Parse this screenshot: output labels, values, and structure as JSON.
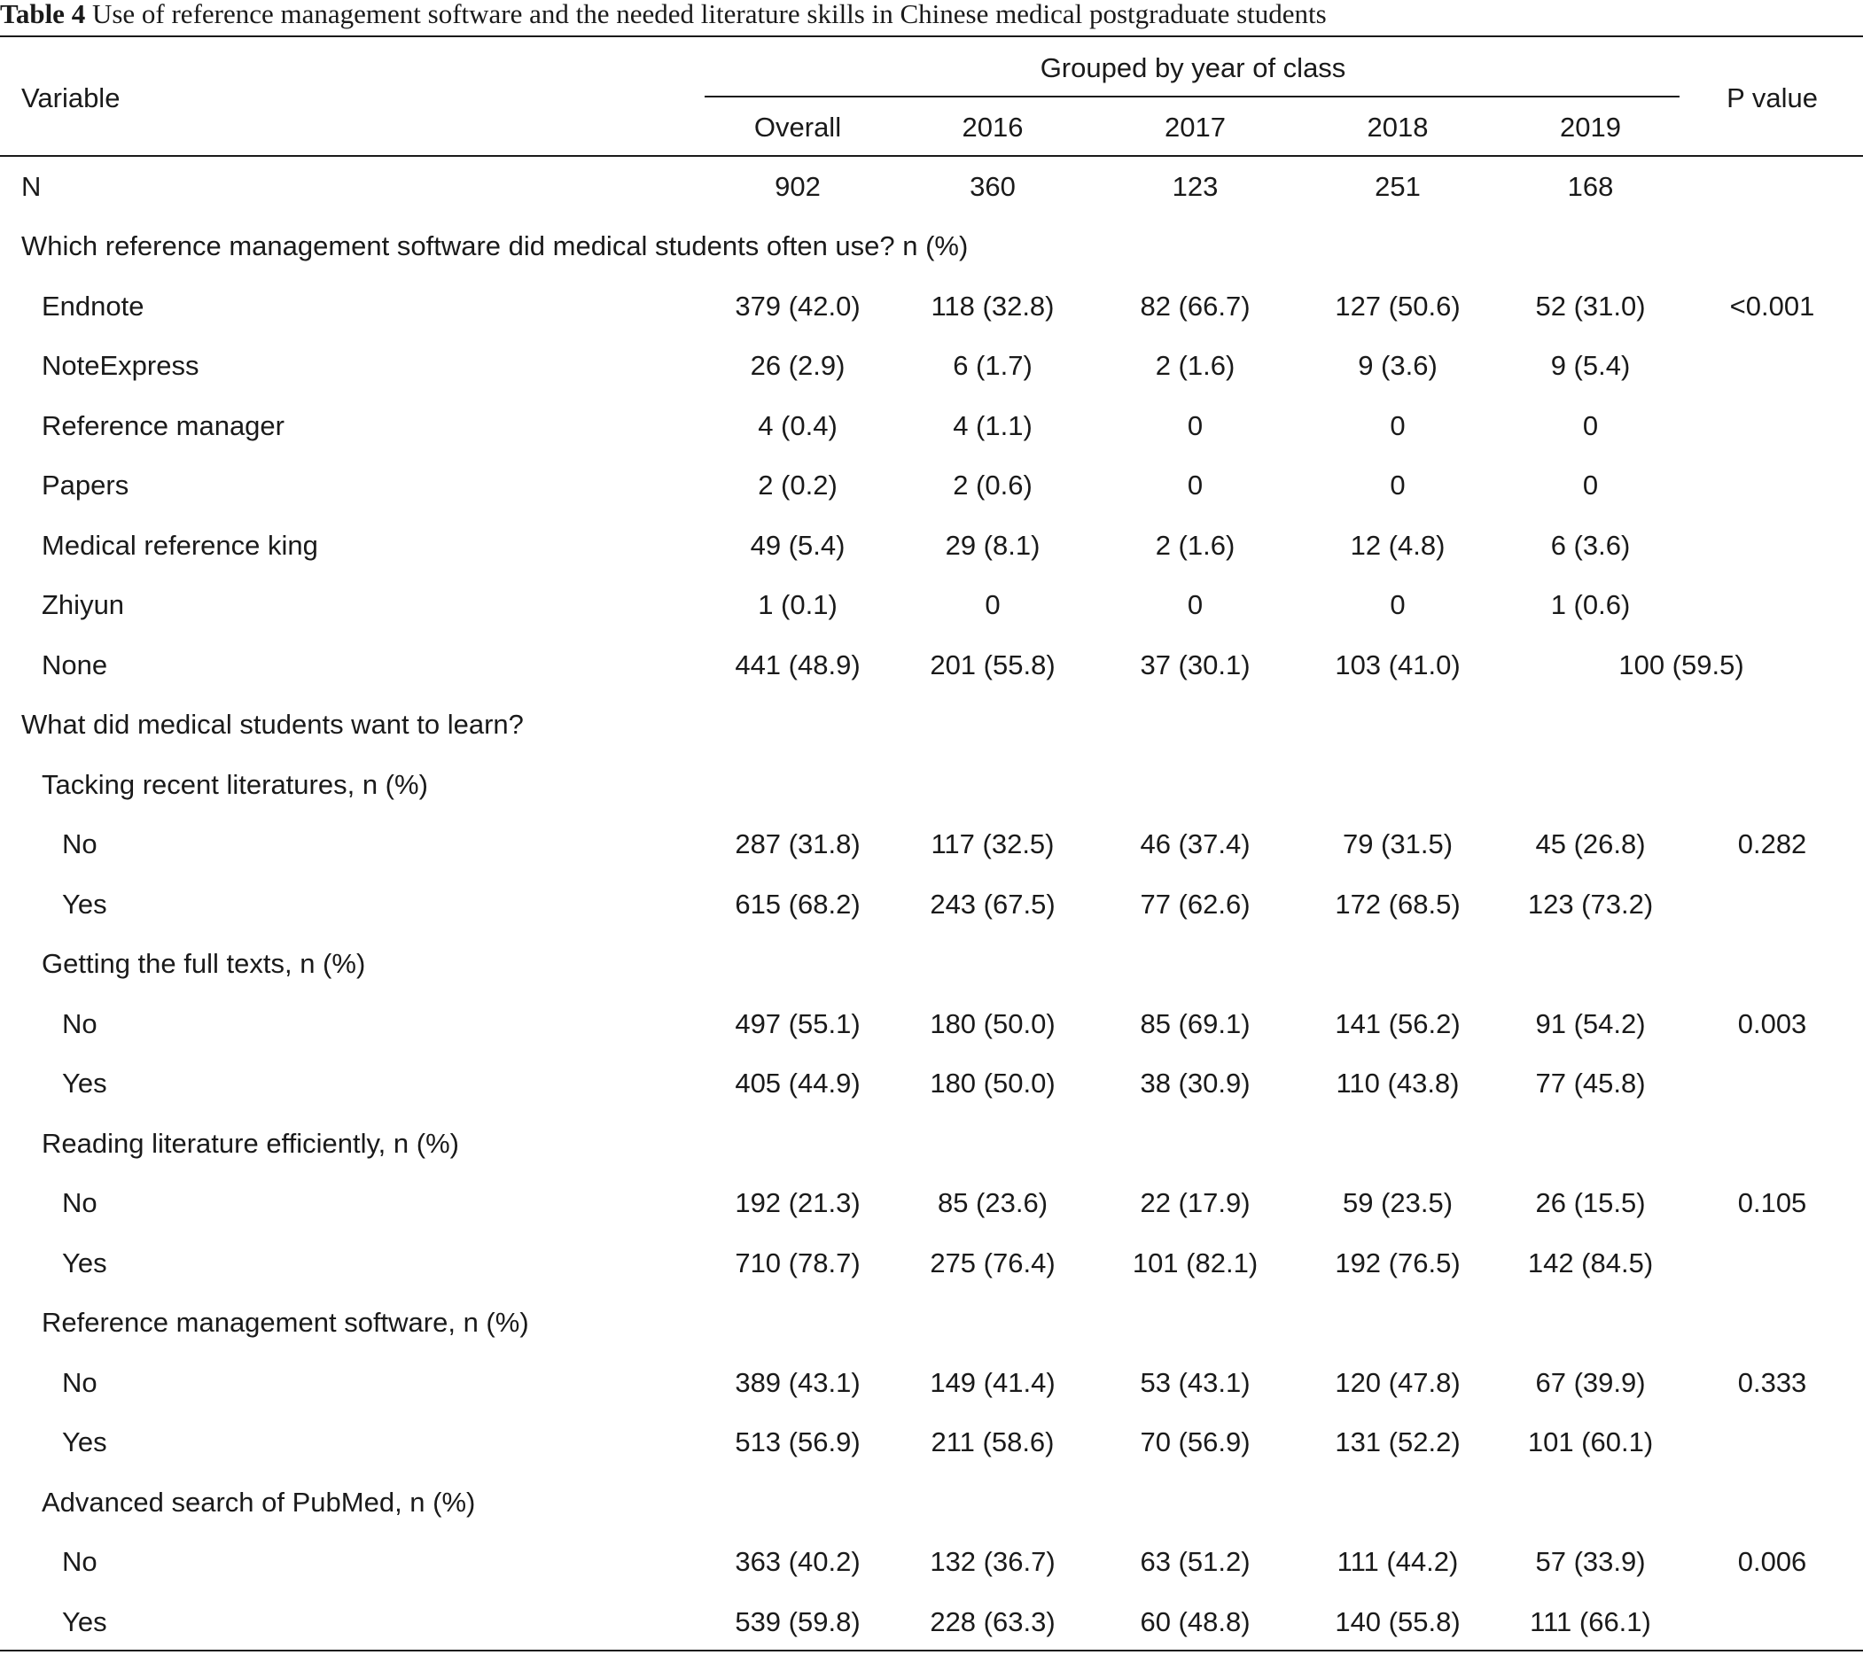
{
  "caption": {
    "label": "Table 4",
    "text": " Use of reference management software and the needed literature skills in Chinese medical postgraduate students"
  },
  "header": {
    "variable": "Variable",
    "group": "Grouped by year of class",
    "p_value": "P value",
    "columns": [
      "Overall",
      "2016",
      "2017",
      "2018",
      "2019"
    ]
  },
  "rows": [
    {
      "label": "N",
      "cells": [
        "902",
        "360",
        "123",
        "251",
        "168"
      ],
      "p": ""
    },
    {
      "label": "Which reference management software did medical students often use? n (%)"
    },
    {
      "label": "Endnote",
      "cells": [
        "379 (42.0)",
        "118 (32.8)",
        "82 (66.7)",
        "127 (50.6)",
        "52 (31.0)"
      ],
      "p": "<0.001"
    },
    {
      "label": "NoteExpress",
      "cells": [
        "26 (2.9)",
        "6 (1.7)",
        "2 (1.6)",
        "9 (3.6)",
        "9 (5.4)"
      ],
      "p": ""
    },
    {
      "label": "Reference manager",
      "cells": [
        "4 (0.4)",
        "4 (1.1)",
        "0",
        "0",
        "0"
      ],
      "p": ""
    },
    {
      "label": "Papers",
      "cells": [
        "2 (0.2)",
        "2 (0.6)",
        "0",
        "0",
        "0"
      ],
      "p": ""
    },
    {
      "label": "Medical reference king",
      "cells": [
        "49 (5.4)",
        "29 (8.1)",
        "2 (1.6)",
        "12 (4.8)",
        "6 (3.6)"
      ],
      "p": ""
    },
    {
      "label": "Zhiyun",
      "cells": [
        "1 (0.1)",
        "0",
        "0",
        "0",
        "1 (0.6)"
      ],
      "p": ""
    },
    {
      "label": "None",
      "cells": [
        "441 (48.9)",
        "201 (55.8)",
        "37 (30.1)",
        "103 (41.0)"
      ],
      "merged": "100 (59.5)"
    },
    {
      "label": "What did medical students want to learn?"
    },
    {
      "label": "Tacking recent literatures, n (%)"
    },
    {
      "label": "No",
      "cells": [
        "287 (31.8)",
        "117 (32.5)",
        "46 (37.4)",
        "79 (31.5)",
        "45 (26.8)"
      ],
      "p": "0.282"
    },
    {
      "label": "Yes",
      "cells": [
        "615 (68.2)",
        "243 (67.5)",
        "77 (62.6)",
        "172 (68.5)",
        "123 (73.2)"
      ],
      "p": ""
    },
    {
      "label": "Getting the full texts, n (%)"
    },
    {
      "label": "No",
      "cells": [
        "497 (55.1)",
        "180 (50.0)",
        "85 (69.1)",
        "141 (56.2)",
        "91 (54.2)"
      ],
      "p": "0.003"
    },
    {
      "label": "Yes",
      "cells": [
        "405 (44.9)",
        "180 (50.0)",
        "38 (30.9)",
        "110 (43.8)",
        "77 (45.8)"
      ],
      "p": ""
    },
    {
      "label": "Reading literature efficiently, n (%)"
    },
    {
      "label": "No",
      "cells": [
        "192 (21.3)",
        "85 (23.6)",
        "22 (17.9)",
        "59 (23.5)",
        "26 (15.5)"
      ],
      "p": "0.105"
    },
    {
      "label": "Yes",
      "cells": [
        "710 (78.7)",
        "275 (76.4)",
        "101 (82.1)",
        "192 (76.5)",
        "142 (84.5)"
      ],
      "p": ""
    },
    {
      "label": "Reference management software, n (%)"
    },
    {
      "label": "No",
      "cells": [
        "389 (43.1)",
        "149 (41.4)",
        "53 (43.1)",
        "120 (47.8)",
        "67 (39.9)"
      ],
      "p": "0.333"
    },
    {
      "label": "Yes",
      "cells": [
        "513 (56.9)",
        "211 (58.6)",
        "70 (56.9)",
        "131 (52.2)",
        "101 (60.1)"
      ],
      "p": ""
    },
    {
      "label": "Advanced search of PubMed, n (%)"
    },
    {
      "label": "No",
      "cells": [
        "363 (40.2)",
        "132 (36.7)",
        "63 (51.2)",
        "111 (44.2)",
        "57 (33.9)"
      ],
      "p": "0.006"
    },
    {
      "label": "Yes",
      "cells": [
        "539 (59.8)",
        "228 (63.3)",
        "60 (48.8)",
        "140 (55.8)",
        "111 (66.1)"
      ],
      "p": ""
    }
  ]
}
